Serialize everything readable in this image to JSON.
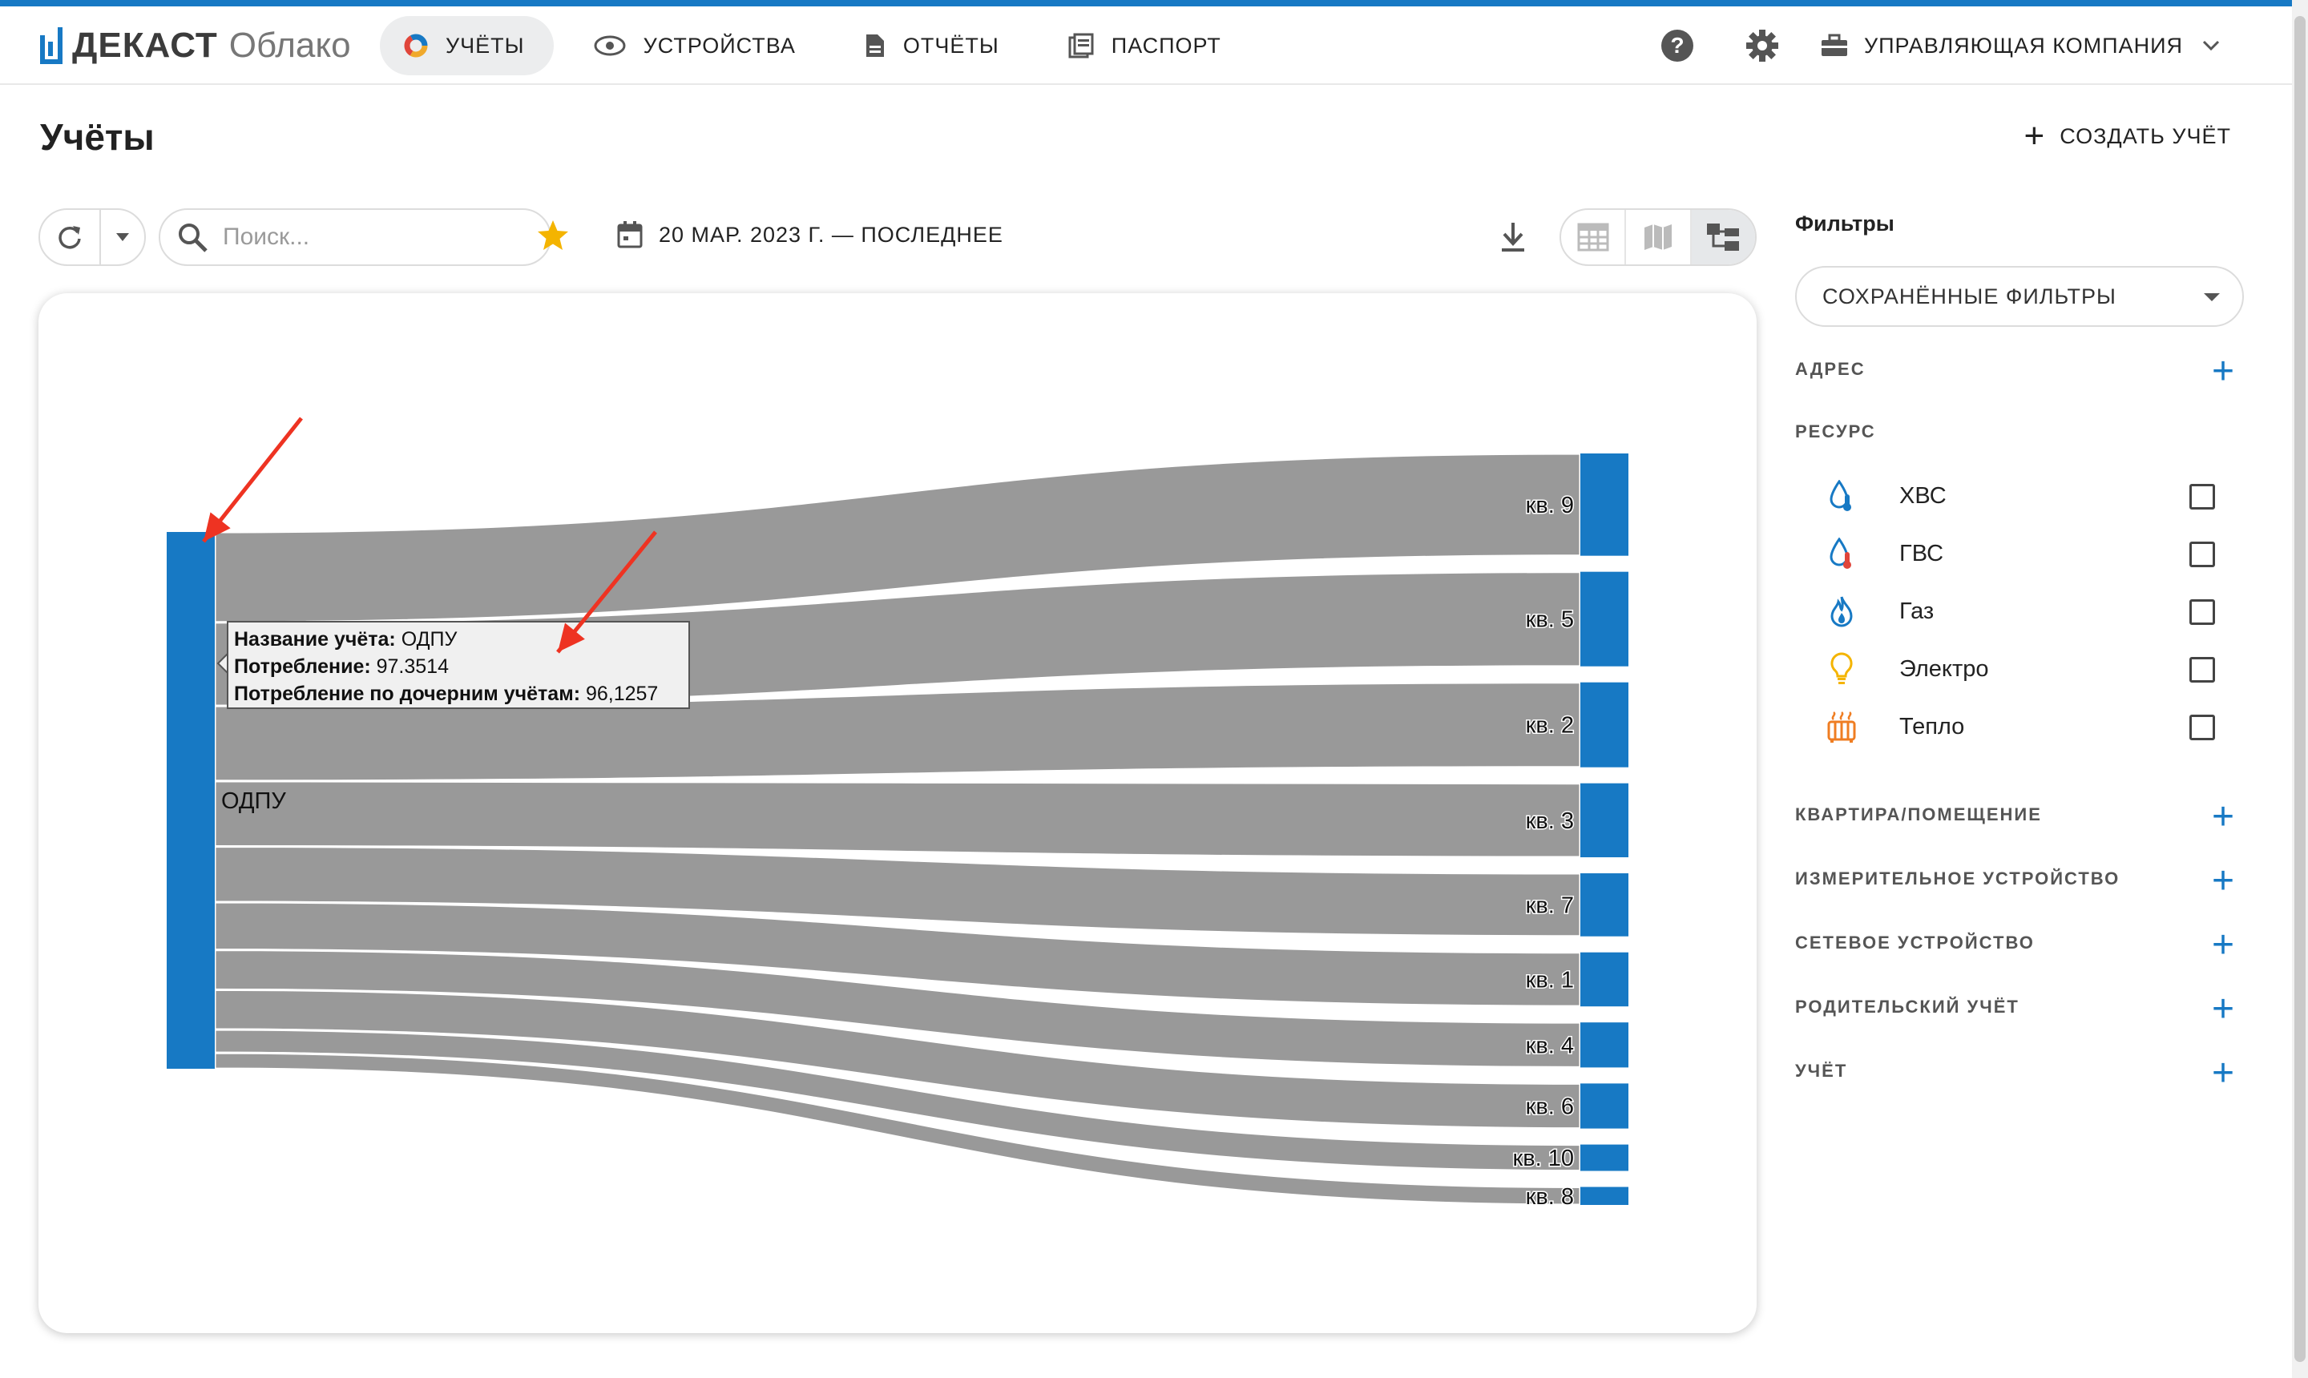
{
  "app": {
    "logo_text": "ДЕКАСТ",
    "logo_sub": "Облако",
    "accent_color": "#1779c4"
  },
  "nav": {
    "items": [
      {
        "label": "УЧЁТЫ",
        "icon": "pie-chart-icon",
        "active": true
      },
      {
        "label": "УСТРОЙСТВА",
        "icon": "device-icon",
        "active": false
      },
      {
        "label": "ОТЧЁТЫ",
        "icon": "document-icon",
        "active": false
      },
      {
        "label": "ПАСПОРТ",
        "icon": "passport-icon",
        "active": false
      }
    ],
    "company": "УПРАВЛЯЮЩАЯ КОМПАНИЯ"
  },
  "page": {
    "title": "Учёты",
    "create_label": "СОЗДАТЬ УЧЁТ"
  },
  "toolbar": {
    "search_placeholder": "Поиск...",
    "date_range": "20 МАР. 2023 Г. — ПОСЛЕДНЕЕ"
  },
  "chart_data": {
    "type": "sankey",
    "source": "ОДПУ",
    "targets": [
      "кв. 9",
      "кв. 5",
      "кв. 2",
      "кв. 3",
      "кв. 7",
      "кв. 1",
      "кв. 4",
      "кв. 6",
      "кв. 10",
      "кв. 8"
    ],
    "relative_flows": [
      15.9,
      14.7,
      13.2,
      11.5,
      9.8,
      8.4,
      7.0,
      7.0,
      4.1,
      2.8
    ],
    "node_color": "#1779c4",
    "link_color": "#999999",
    "tooltip": {
      "name_label": "Название учёта:",
      "name_value": "ОДПУ",
      "consumption_label": "Потребление:",
      "consumption_value": "97.3514",
      "child_label": "Потребление по дочерним учётам:",
      "child_value": "96,1257"
    }
  },
  "filters": {
    "title": "Фильтры",
    "saved_label": "СОХРАНЁННЫЕ ФИЛЬТРЫ",
    "address": "АДРЕС",
    "resource": "РЕСУРС",
    "resources": [
      {
        "label": "ХВС",
        "icon": "cold-water-icon",
        "checked": false
      },
      {
        "label": "ГВС",
        "icon": "hot-water-icon",
        "checked": false
      },
      {
        "label": "Газ",
        "icon": "gas-flame-icon",
        "checked": false
      },
      {
        "label": "Электро",
        "icon": "light-bulb-icon",
        "checked": false
      },
      {
        "label": "Тепло",
        "icon": "radiator-icon",
        "checked": false
      }
    ],
    "sections": [
      "КВАРТИРА/ПОМЕЩЕНИЕ",
      "ИЗМЕРИТЕЛЬНОЕ УСТРОЙСТВО",
      "СЕТЕВОЕ УСТРОЙСТВО",
      "РОДИТЕЛЬСКИЙ УЧЁТ",
      "УЧЁТ"
    ]
  }
}
